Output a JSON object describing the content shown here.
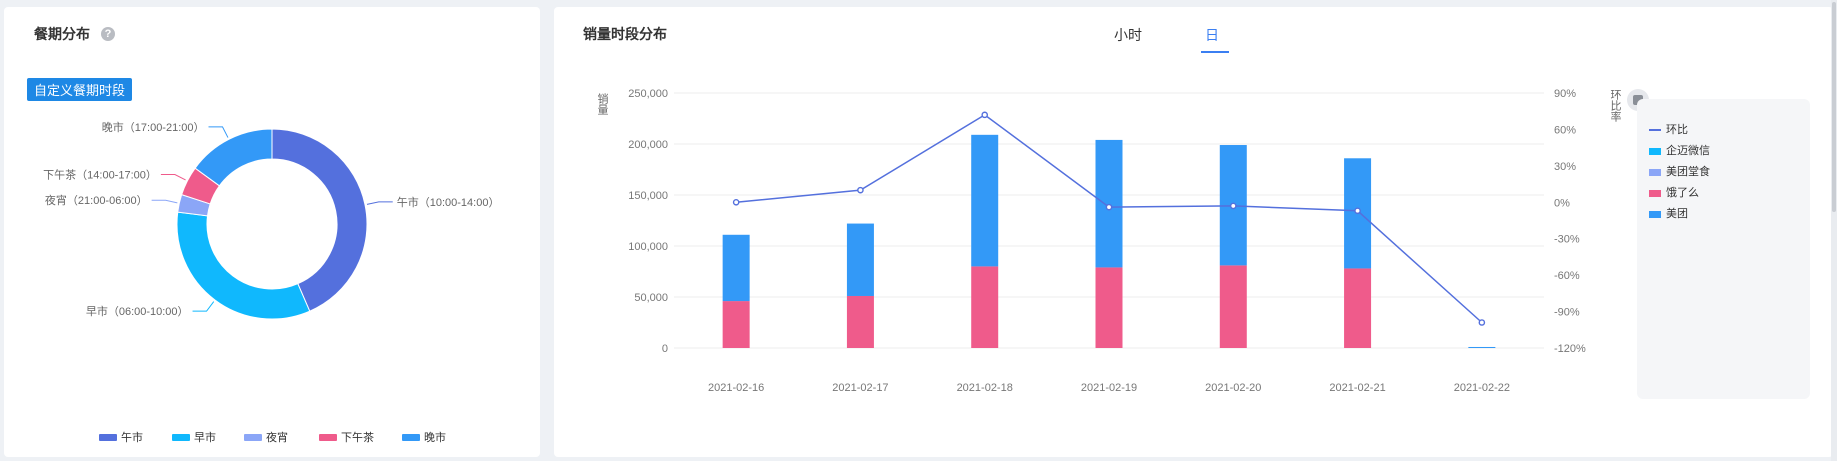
{
  "meal_panel": {
    "title": "餐期分布",
    "help": "?",
    "custom_button": "自定义餐期时段"
  },
  "sales_panel": {
    "title": "销量时段分布",
    "tabs": [
      {
        "label": "小时",
        "active": false
      },
      {
        "label": "日",
        "active": true
      }
    ],
    "legend_toggle_icon": "layers-icon"
  },
  "chart_data": [
    {
      "type": "pie",
      "variant": "donut",
      "title": "餐期分布",
      "slices": [
        {
          "label": "午市（10:00-14:00）",
          "legend": "午市",
          "value": 43.5,
          "color": "#5470dd"
        },
        {
          "label": "早市（06:00-10:00）",
          "legend": "早市",
          "value": 33.5,
          "color": "#10b8fd"
        },
        {
          "label": "夜宵（21:00-06:00）",
          "legend": "夜宵",
          "value": 3,
          "color": "#8ba6f7"
        },
        {
          "label": "下午茶（14:00-17:00）",
          "legend": "下午茶",
          "value": 5,
          "color": "#ef5b8b"
        },
        {
          "label": "晚市（17:00-21:00）",
          "legend": "晚市",
          "value": 15,
          "color": "#3399f7"
        }
      ],
      "legend_position": "bottom"
    },
    {
      "type": "bar",
      "stacked": true,
      "title": "销量时段分布",
      "ylabel": "销量",
      "y2label": "环比率",
      "categories": [
        "2021-02-16",
        "2021-02-17",
        "2021-02-18",
        "2021-02-19",
        "2021-02-20",
        "2021-02-21",
        "2021-02-22"
      ],
      "ylim": [
        0,
        250000
      ],
      "yticks": [
        "250,000",
        "200,000",
        "150,000",
        "100,000",
        "50,000",
        "0"
      ],
      "y2lim": [
        -120,
        90
      ],
      "y2ticks": [
        "90%",
        "60%",
        "30%",
        "0%",
        "-30%",
        "-60%",
        "-90%",
        "-120%"
      ],
      "series": [
        {
          "name": "饿了么",
          "color": "#ef5b8b",
          "values": [
            46000,
            51000,
            80000,
            79000,
            81000,
            78000,
            0
          ]
        },
        {
          "name": "美团",
          "color": "#3399f7",
          "values": [
            65000,
            71000,
            129000,
            125000,
            118000,
            108000,
            1000
          ]
        },
        {
          "name": "企迈微信",
          "color": "#10b8fd",
          "values": [
            0,
            0,
            0,
            0,
            0,
            0,
            0
          ]
        },
        {
          "name": "美团堂食",
          "color": "#8ba6f7",
          "values": [
            0,
            0,
            0,
            0,
            0,
            0,
            0
          ]
        }
      ],
      "line": {
        "name": "环比",
        "color": "#5470dd",
        "values": [
          0,
          10,
          72,
          -4,
          -3,
          -7,
          -99
        ]
      },
      "legend": [
        "环比",
        "企迈微信",
        "美团堂食",
        "饿了么",
        "美团"
      ],
      "legend_position": "right"
    }
  ]
}
